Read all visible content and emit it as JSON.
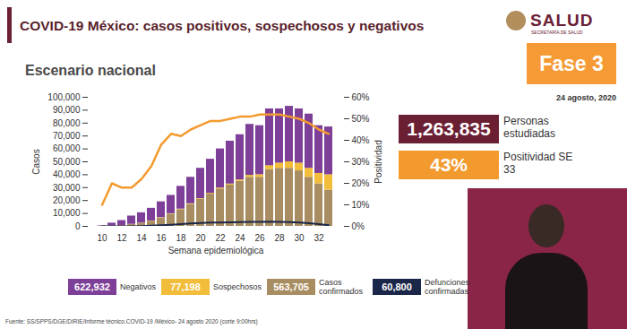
{
  "header": {
    "title": "COVID-19 México: casos positivos, sospechosos y negativos",
    "logo": "SALUD",
    "logo_subtitle": "SECRETARÍA DE SALUD",
    "phase": "Fase 3",
    "date": "24 agosto, 2020"
  },
  "chart_data": {
    "type": "bar",
    "title": "Escenario nacional",
    "stacked": true,
    "grid": false,
    "x_label": "Semana epidemiológica",
    "y_label": "Casos",
    "y2_label": "Positividad",
    "categories": [
      10,
      null,
      12,
      null,
      14,
      null,
      16,
      null,
      18,
      null,
      20,
      null,
      22,
      null,
      24,
      null,
      26,
      null,
      28,
      null,
      30,
      null,
      32,
      null
    ],
    "ylim": [
      0,
      100000
    ],
    "yticks": [
      0,
      {
        "value": 10000,
        "label": "10,000"
      },
      {
        "value": 20000,
        "label": "20,000"
      },
      {
        "value": 30000,
        "label": "30,000"
      },
      {
        "value": 40000,
        "label": "40,000"
      },
      {
        "value": 50000,
        "label": "50,000"
      },
      {
        "value": 60000,
        "label": "60,000"
      },
      {
        "value": 70000,
        "label": "70,000"
      },
      {
        "value": 80000,
        "label": "80,000"
      },
      {
        "value": 90000,
        "label": "90,000"
      },
      {
        "value": 100000,
        "label": "100,000"
      }
    ],
    "y2lim": [
      0,
      60
    ],
    "y2ticks": [
      {
        "value": 0,
        "label": "0%"
      },
      {
        "value": 10,
        "label": "10%"
      },
      {
        "value": 20,
        "label": "20%"
      },
      {
        "value": 30,
        "label": "30%"
      },
      {
        "value": 40,
        "label": "40%"
      },
      {
        "value": 50,
        "label": "50%"
      },
      {
        "value": 60,
        "label": "60%"
      }
    ],
    "series": [
      {
        "name": "Negativos",
        "type": "bar",
        "color": "#7d3f98",
        "total": {
          "value": 622932,
          "label": "622,932"
        },
        "values": [
          400,
          2200,
          3800,
          6400,
          7900,
          9800,
          12200,
          14200,
          17600,
          20500,
          23500,
          26400,
          30300,
          33200,
          35000,
          39500,
          38000,
          44000,
          42000,
          43000,
          42000,
          42000,
          37000,
          37000
        ]
      },
      {
        "name": "Sospechosos",
        "type": "bar",
        "color": "#f2bd3a",
        "total": {
          "value": 77198,
          "label": "77,198"
        },
        "values": [
          0,
          0,
          0,
          100,
          100,
          200,
          300,
          300,
          400,
          500,
          500,
          600,
          700,
          800,
          1000,
          1500,
          2000,
          3000,
          4000,
          5000,
          6000,
          7000,
          8000,
          12000
        ]
      },
      {
        "name": "Casos confirmados",
        "type": "bar",
        "color": "#a98d62",
        "total": {
          "value": 563705,
          "label": "563,705"
        },
        "values": [
          100,
          300,
          700,
          1500,
          2500,
          4000,
          6500,
          9500,
          13000,
          17000,
          21000,
          25000,
          29000,
          32000,
          35000,
          38000,
          38000,
          44000,
          45000,
          45000,
          43000,
          38000,
          33000,
          28000
        ]
      },
      {
        "name": "Defunciones confirmadas",
        "type": "line",
        "color": "#1b2748",
        "total": {
          "value": 60800,
          "label": "60,800"
        },
        "values": [
          0,
          0,
          10,
          50,
          200,
          500,
          900,
          1300,
          1800,
          2200,
          2600,
          2900,
          3000,
          3100,
          3300,
          3400,
          3500,
          3600,
          3500,
          3300,
          2900,
          2400,
          1700,
          800
        ]
      },
      {
        "name": "Positividad",
        "type": "line",
        "axis": "y2",
        "color": "#f39a2e",
        "values": [
          10,
          20,
          18,
          18,
          22,
          28,
          38,
          43,
          42,
          45,
          47,
          49,
          49,
          50,
          51,
          51,
          52,
          52,
          52,
          51,
          50,
          48,
          45,
          43
        ]
      }
    ]
  },
  "summary": {
    "studied": {
      "value": 1263835,
      "label": "1,263,835"
    },
    "studied_text": "Personas estudiadas",
    "positivity": {
      "value": 43,
      "label": "43%"
    },
    "positivity_text": "Positividad SE 33"
  },
  "footer": "Fuente: SS/SPPS/DGE/DIRIE/Informe técnico.COVID-19 /México- 24 agosto 2020 (corte 9:00hrs)"
}
